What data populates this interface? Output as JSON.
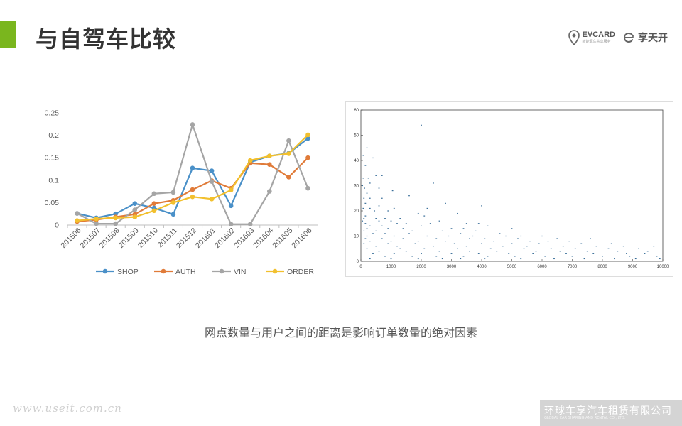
{
  "header": {
    "title": "与自驾车比较",
    "accent_color": "#7ab61e"
  },
  "logos": {
    "evcard_text": "EVCARD",
    "evcard_sub": "新能源车共享服务",
    "xiangtiankai_text": "享天开",
    "evcard_icon": "location-pin-icon",
    "xiangtiankai_icon": "e-letter-icon"
  },
  "chart_data": [
    {
      "type": "line",
      "categories": [
        "201506",
        "201507",
        "201508",
        "201509",
        "201510",
        "201511",
        "201512",
        "201601",
        "201602",
        "201603",
        "201604",
        "201605",
        "201606"
      ],
      "series": [
        {
          "name": "SHOP",
          "color": "#4a90c8",
          "values": [
            0.026,
            0.016,
            0.025,
            0.048,
            0.038,
            0.024,
            0.127,
            0.121,
            0.043,
            0.14,
            0.154,
            0.16,
            0.193
          ]
        },
        {
          "name": "AUTH",
          "color": "#e07b39",
          "values": [
            0.008,
            0.012,
            0.018,
            0.024,
            0.048,
            0.055,
            0.079,
            0.099,
            0.082,
            0.138,
            0.135,
            0.107,
            0.15
          ]
        },
        {
          "name": "VIN",
          "color": "#a5a5a5",
          "values": [
            0.026,
            0.003,
            0.003,
            0.034,
            0.07,
            0.073,
            0.224,
            0.097,
            0.002,
            0.002,
            0.075,
            0.188,
            0.082
          ]
        },
        {
          "name": "ORDER",
          "color": "#f2c02e",
          "values": [
            0.01,
            0.014,
            0.016,
            0.018,
            0.032,
            0.05,
            0.063,
            0.058,
            0.078,
            0.144,
            0.154,
            0.159,
            0.201
          ]
        }
      ],
      "yticks": [
        "0",
        "0.05",
        "0.1",
        "0.15",
        "0.2",
        "0.25"
      ],
      "ylim": [
        0,
        0.25
      ],
      "grid": false,
      "legend_position": "bottom"
    },
    {
      "type": "scatter",
      "xlim": [
        0,
        10000
      ],
      "ylim": [
        0,
        60
      ],
      "xticks": [
        "0",
        "1000",
        "2000",
        "3000",
        "4000",
        "5000",
        "6000",
        "7000",
        "8000",
        "9000",
        "10000"
      ],
      "yticks": [
        "0",
        "10",
        "20",
        "30",
        "40",
        "50",
        "60"
      ],
      "point_color": "#3a6f9a",
      "points": [
        [
          2000,
          54
        ],
        [
          200,
          45
        ],
        [
          80,
          42
        ],
        [
          400,
          41
        ],
        [
          150,
          38
        ],
        [
          500,
          34
        ],
        [
          700,
          34
        ],
        [
          80,
          33
        ],
        [
          250,
          33
        ],
        [
          300,
          31
        ],
        [
          2400,
          31
        ],
        [
          50,
          30
        ],
        [
          120,
          29
        ],
        [
          600,
          29
        ],
        [
          1050,
          28
        ],
        [
          200,
          27
        ],
        [
          1600,
          26
        ],
        [
          100,
          25
        ],
        [
          300,
          25
        ],
        [
          700,
          25
        ],
        [
          150,
          23
        ],
        [
          2800,
          23
        ],
        [
          4000,
          22
        ],
        [
          600,
          22
        ],
        [
          80,
          21
        ],
        [
          300,
          21
        ],
        [
          1100,
          21
        ],
        [
          2200,
          21
        ],
        [
          450,
          20
        ],
        [
          900,
          20
        ],
        [
          1900,
          19
        ],
        [
          3200,
          19
        ],
        [
          150,
          18
        ],
        [
          2100,
          18
        ],
        [
          100,
          17
        ],
        [
          500,
          17
        ],
        [
          800,
          17
        ],
        [
          1300,
          17
        ],
        [
          50,
          16
        ],
        [
          600,
          16
        ],
        [
          1000,
          16
        ],
        [
          2600,
          16
        ],
        [
          150,
          15
        ],
        [
          1200,
          15
        ],
        [
          1500,
          15
        ],
        [
          2300,
          15
        ],
        [
          3500,
          15
        ],
        [
          3900,
          15
        ],
        [
          300,
          14
        ],
        [
          700,
          14
        ],
        [
          2000,
          14
        ],
        [
          4200,
          14
        ],
        [
          200,
          13
        ],
        [
          900,
          13
        ],
        [
          1400,
          13
        ],
        [
          3000,
          13
        ],
        [
          3400,
          13
        ],
        [
          5000,
          13
        ],
        [
          100,
          12
        ],
        [
          500,
          12
        ],
        [
          1700,
          12
        ],
        [
          2700,
          12
        ],
        [
          3800,
          12
        ],
        [
          400,
          11
        ],
        [
          800,
          11
        ],
        [
          1600,
          11
        ],
        [
          3300,
          11
        ],
        [
          4600,
          11
        ],
        [
          200,
          10
        ],
        [
          1100,
          10
        ],
        [
          2200,
          10
        ],
        [
          2900,
          10
        ],
        [
          3700,
          10
        ],
        [
          4800,
          10
        ],
        [
          5300,
          10
        ],
        [
          6000,
          10
        ],
        [
          150,
          9
        ],
        [
          700,
          9
        ],
        [
          1400,
          9
        ],
        [
          2500,
          9
        ],
        [
          3600,
          9
        ],
        [
          4100,
          9
        ],
        [
          5200,
          9
        ],
        [
          6500,
          9
        ],
        [
          7600,
          9
        ],
        [
          300,
          8
        ],
        [
          1000,
          8
        ],
        [
          1900,
          8
        ],
        [
          2800,
          8
        ],
        [
          4400,
          8
        ],
        [
          5600,
          8
        ],
        [
          6200,
          8
        ],
        [
          6900,
          8
        ],
        [
          100,
          7
        ],
        [
          900,
          7
        ],
        [
          1800,
          7
        ],
        [
          3100,
          7
        ],
        [
          4000,
          7
        ],
        [
          5000,
          7
        ],
        [
          5900,
          7
        ],
        [
          7300,
          7
        ],
        [
          8300,
          7
        ],
        [
          500,
          6
        ],
        [
          1200,
          6
        ],
        [
          2400,
          6
        ],
        [
          3500,
          6
        ],
        [
          4700,
          6
        ],
        [
          5500,
          6
        ],
        [
          6700,
          6
        ],
        [
          7800,
          6
        ],
        [
          8700,
          6
        ],
        [
          9700,
          6
        ],
        [
          200,
          5
        ],
        [
          1300,
          5
        ],
        [
          2100,
          5
        ],
        [
          3200,
          5
        ],
        [
          4300,
          5
        ],
        [
          5400,
          5
        ],
        [
          6300,
          5
        ],
        [
          7100,
          5
        ],
        [
          8200,
          5
        ],
        [
          9200,
          5
        ],
        [
          600,
          4
        ],
        [
          1500,
          4
        ],
        [
          2600,
          4
        ],
        [
          3600,
          4
        ],
        [
          4500,
          4
        ],
        [
          5800,
          4
        ],
        [
          6600,
          4
        ],
        [
          7500,
          4
        ],
        [
          8500,
          4
        ],
        [
          9500,
          4
        ],
        [
          400,
          3
        ],
        [
          1100,
          3
        ],
        [
          2000,
          3
        ],
        [
          3000,
          3
        ],
        [
          3900,
          3
        ],
        [
          4900,
          3
        ],
        [
          5700,
          3
        ],
        [
          6800,
          3
        ],
        [
          7700,
          3
        ],
        [
          8800,
          3
        ],
        [
          9400,
          3
        ],
        [
          800,
          2
        ],
        [
          1700,
          2
        ],
        [
          2500,
          2
        ],
        [
          3400,
          2
        ],
        [
          4200,
          2
        ],
        [
          5100,
          2
        ],
        [
          6100,
          2
        ],
        [
          7000,
          2
        ],
        [
          8000,
          2
        ],
        [
          8900,
          2
        ],
        [
          9800,
          2
        ],
        [
          300,
          1
        ],
        [
          1000,
          1
        ],
        [
          1900,
          1
        ],
        [
          2700,
          1
        ],
        [
          3300,
          1
        ],
        [
          4100,
          1
        ],
        [
          5300,
          1
        ],
        [
          6400,
          1
        ],
        [
          7400,
          1
        ],
        [
          8400,
          1
        ],
        [
          9100,
          1
        ],
        [
          9900,
          1
        ]
      ]
    }
  ],
  "caption": "网点数量与用户之间的距离是影响订单数量的绝对因素",
  "watermark": "www.useit.com.cn",
  "footer": {
    "company": "环球车享汽车租赁有限公司",
    "sub": "GLOBAL CAR SHARING AND RENTAL CO., LTD."
  }
}
